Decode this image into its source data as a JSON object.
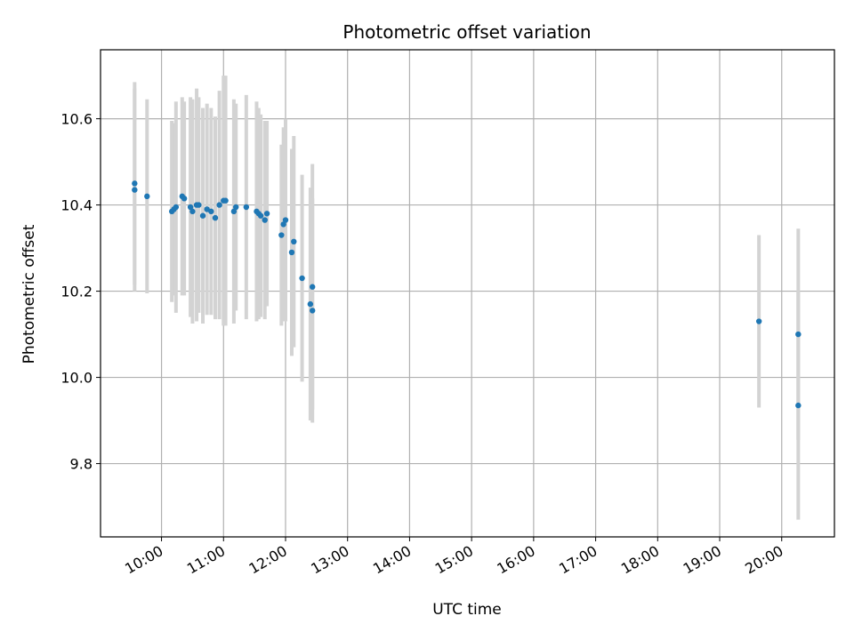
{
  "chart_data": {
    "type": "scatter",
    "title": "Photometric offset variation",
    "xlabel": "UTC time",
    "ylabel": "Photometric offset",
    "x_ticks": [
      "10:00",
      "11:00",
      "12:00",
      "13:00",
      "14:00",
      "15:00",
      "16:00",
      "17:00",
      "18:00",
      "19:00",
      "20:00"
    ],
    "y_ticks": [
      "9.8",
      "10.0",
      "10.2",
      "10.4",
      "10.6"
    ],
    "xlim": [
      "09:01",
      "20:51"
    ],
    "ylim": [
      9.63,
      10.76
    ],
    "grid": true,
    "point_color": "#1f77b4",
    "errorbar_color": "#d3d3d3",
    "points": [
      {
        "x": "09:34",
        "y": 10.45,
        "err": 0.235
      },
      {
        "x": "09:34",
        "y": 10.435,
        "err": 0.235
      },
      {
        "x": "09:46",
        "y": 10.42,
        "err": 0.225
      },
      {
        "x": "10:10",
        "y": 10.385,
        "err": 0.21
      },
      {
        "x": "10:12",
        "y": 10.39,
        "err": 0.2
      },
      {
        "x": "10:14",
        "y": 10.395,
        "err": 0.245
      },
      {
        "x": "10:20",
        "y": 10.42,
        "err": 0.23
      },
      {
        "x": "10:22",
        "y": 10.415,
        "err": 0.225
      },
      {
        "x": "10:28",
        "y": 10.395,
        "err": 0.255
      },
      {
        "x": "10:30",
        "y": 10.385,
        "err": 0.26
      },
      {
        "x": "10:34",
        "y": 10.4,
        "err": 0.27
      },
      {
        "x": "10:36",
        "y": 10.4,
        "err": 0.25
      },
      {
        "x": "10:40",
        "y": 10.375,
        "err": 0.25
      },
      {
        "x": "10:44",
        "y": 10.39,
        "err": 0.245
      },
      {
        "x": "10:48",
        "y": 10.385,
        "err": 0.24
      },
      {
        "x": "10:52",
        "y": 10.37,
        "err": 0.235
      },
      {
        "x": "10:56",
        "y": 10.4,
        "err": 0.265
      },
      {
        "x": "11:00",
        "y": 10.41,
        "err": 0.29
      },
      {
        "x": "11:02",
        "y": 10.41,
        "err": 0.29
      },
      {
        "x": "11:10",
        "y": 10.385,
        "err": 0.26
      },
      {
        "x": "11:12",
        "y": 10.395,
        "err": 0.24
      },
      {
        "x": "11:22",
        "y": 10.395,
        "err": 0.26
      },
      {
        "x": "11:32",
        "y": 10.385,
        "err": 0.255
      },
      {
        "x": "11:34",
        "y": 10.38,
        "err": 0.245
      },
      {
        "x": "11:36",
        "y": 10.375,
        "err": 0.235
      },
      {
        "x": "11:40",
        "y": 10.365,
        "err": 0.23
      },
      {
        "x": "11:42",
        "y": 10.38,
        "err": 0.215
      },
      {
        "x": "11:56",
        "y": 10.33,
        "err": 0.21
      },
      {
        "x": "11:58",
        "y": 10.355,
        "err": 0.225
      },
      {
        "x": "12:00",
        "y": 10.365,
        "err": 0.235
      },
      {
        "x": "12:06",
        "y": 10.29,
        "err": 0.24
      },
      {
        "x": "12:08",
        "y": 10.315,
        "err": 0.245
      },
      {
        "x": "12:16",
        "y": 10.23,
        "err": 0.24
      },
      {
        "x": "12:26",
        "y": 10.21,
        "err": 0.285
      },
      {
        "x": "12:24",
        "y": 10.17,
        "err": 0.27
      },
      {
        "x": "12:26",
        "y": 10.155,
        "err": 0.26
      },
      {
        "x": "19:38",
        "y": 10.13,
        "err": 0.2
      },
      {
        "x": "20:16",
        "y": 10.1,
        "err": 0.245
      },
      {
        "x": "20:16",
        "y": 9.935,
        "err": 0.265
      }
    ]
  }
}
